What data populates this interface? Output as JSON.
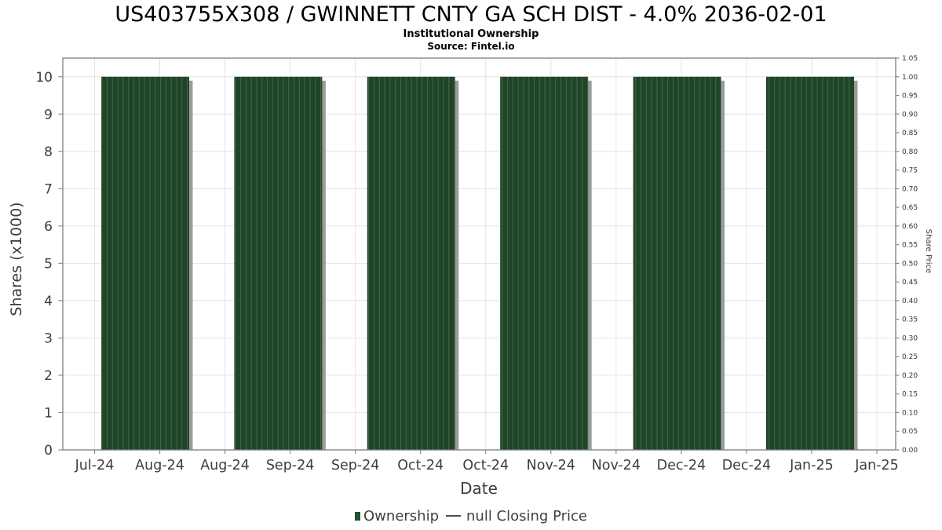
{
  "chart_data": {
    "type": "bar",
    "title": "US403755X308 / GWINNETT CNTY GA SCH DIST - 4.0% 2036-02-01",
    "subtitle": "Institutional Ownership",
    "source": "Source: Fintel.io",
    "categories": [
      "Aug-24",
      "Sep-24",
      "Oct-24",
      "Nov-24",
      "Dec-24",
      "Jan-25"
    ],
    "values": [
      10,
      10,
      10,
      10,
      10,
      10
    ],
    "series_name": "Ownership",
    "xlabel": "Date",
    "ylabel": "Shares (x1000)",
    "ylabel_right": "Share Price",
    "x_tick_labels": [
      "Jul-24",
      "Aug-24",
      "Aug-24",
      "Sep-24",
      "Sep-24",
      "Oct-24",
      "Oct-24",
      "Nov-24",
      "Nov-24",
      "Dec-24",
      "Dec-24",
      "Jan-25",
      "Jan-25"
    ],
    "y_ticks_left": [
      0,
      1,
      2,
      3,
      4,
      5,
      6,
      7,
      8,
      9,
      10
    ],
    "ylim_left": [
      0,
      10.5
    ],
    "y_ticks_right": [
      "0.00",
      "0.05",
      "0.10",
      "0.15",
      "0.20",
      "0.25",
      "0.30",
      "0.35",
      "0.40",
      "0.45",
      "0.50",
      "0.55",
      "0.60",
      "0.65",
      "0.70",
      "0.75",
      "0.80",
      "0.85",
      "0.90",
      "0.95",
      "1.00",
      "1.05"
    ],
    "ylim_right": [
      0,
      1.05
    ],
    "grid": true,
    "legend": {
      "position": "bottom-center",
      "items": [
        {
          "label": "Ownership",
          "marker": "square",
          "color": "#235030"
        },
        {
          "label": "null Closing Price",
          "marker": "line",
          "color": "#4d4d4d"
        }
      ]
    },
    "colors": {
      "bar_fill": "#1e4527",
      "bar_hatch": "#436345",
      "bar_shadow": "#9c9c9c",
      "grid": "#e4e4e4",
      "frame": "#7d7d7d",
      "tick": "#8a8a8a",
      "text": "#3d3d3d"
    }
  }
}
